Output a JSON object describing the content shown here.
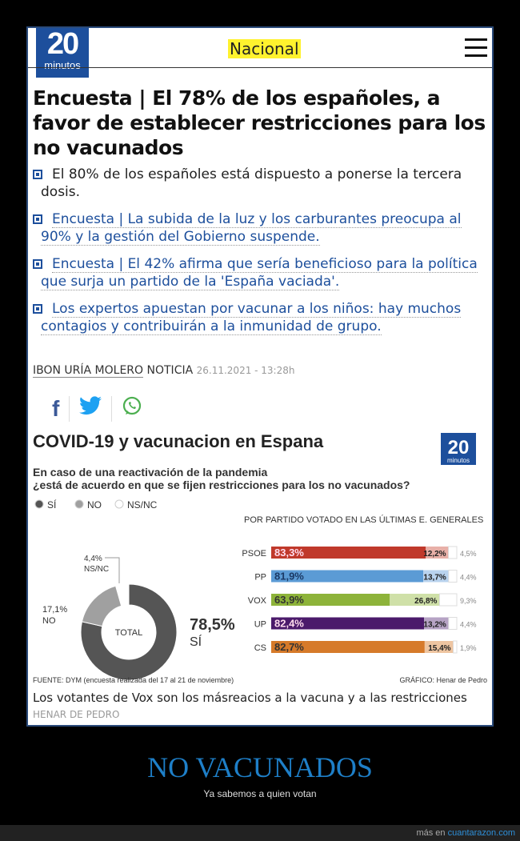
{
  "header": {
    "logo_number": "20",
    "logo_word": "minutos",
    "section": "Nacional",
    "menu_icon": "hamburger-icon"
  },
  "article": {
    "title": "Encuesta | El 78% de los españoles, a favor de establecer restricciones para los no vacunados",
    "bullets": [
      {
        "text": "El 80% de los españoles está dispuesto a ponerse la tercera dosis.",
        "link": false
      },
      {
        "text": "Encuesta | La subida de la luz y los carburantes preocupa al 90% y la gestión del Gobierno suspende.",
        "link": true
      },
      {
        "text": "Encuesta | El 42% afirma que sería beneficioso para la política que surja un partido de la 'España vaciada'.",
        "link": true
      },
      {
        "text": "Los expertos apuestan por vacunar a los niños: hay muchos contagios y contribuirán a la inmunidad de grupo.",
        "link": true
      }
    ],
    "author": "IBON URÍA MOLERO",
    "type": "NOTICIA",
    "date": "26.11.2021 - 13:28h",
    "caption": "Los votantes de Vox son los másreacios a la vacuna y a las restricciones",
    "caption_credit": "HENAR DE PEDRO"
  },
  "chart_data": {
    "type": "bar",
    "title": "COVID-19 y vacunacion en Espana",
    "subtitle": "En caso de una reactivación de la pandemia ¿está de acuerdo en que se fijen restricciones para los no vacunados?",
    "legend": [
      "SÍ",
      "NO",
      "NS/NC"
    ],
    "colors_total": [
      "#555555",
      "#a0a0a0",
      "#ffffff"
    ],
    "total": {
      "center_label": "TOTAL",
      "values": [
        78.5,
        17.1,
        4.4
      ],
      "labels": [
        "78,5%",
        "17,1%",
        "4,4%"
      ]
    },
    "bars_title": "POR PARTIDO VOTADO EN LAS ÚLTIMAS E. GENERALES",
    "categories": [
      "PSOE",
      "PP",
      "VOX",
      "UP",
      "CS"
    ],
    "si": [
      83.3,
      81.9,
      63.9,
      82.4,
      82.7
    ],
    "no": [
      12.2,
      13.7,
      26.8,
      13.2,
      15.4
    ],
    "nsnc": [
      4.5,
      4.4,
      9.3,
      4.4,
      1.9
    ],
    "si_labels": [
      "83,3%",
      "81,9%",
      "63,9%",
      "82,4%",
      "82,7%"
    ],
    "no_labels": [
      "12,2%",
      "13,7%",
      "26,8%",
      "13,2%",
      "15,4%"
    ],
    "nsnc_labels": [
      "4,5%",
      "4,4%",
      "9,3%",
      "4,4%",
      "1,9%"
    ],
    "party_colors": [
      "#c0392b",
      "#5b9bd5",
      "#8db33a",
      "#4b1a6b",
      "#d67a2a"
    ],
    "party_light_colors": [
      "#e8b0a8",
      "#b9d3ee",
      "#cfe0a8",
      "#b6a3c4",
      "#eec5a1"
    ],
    "source": "FUENTE: DYM (encuesta realizada del 17 al 21 de noviembre)",
    "credit": "GRÁFICO: Henar de Pedro"
  },
  "meme": {
    "title": "NO VACUNADOS",
    "subtitle": "Ya sabemos a quien votan"
  },
  "footer": {
    "prefix": "más en",
    "site": "cuantarazon.com"
  }
}
